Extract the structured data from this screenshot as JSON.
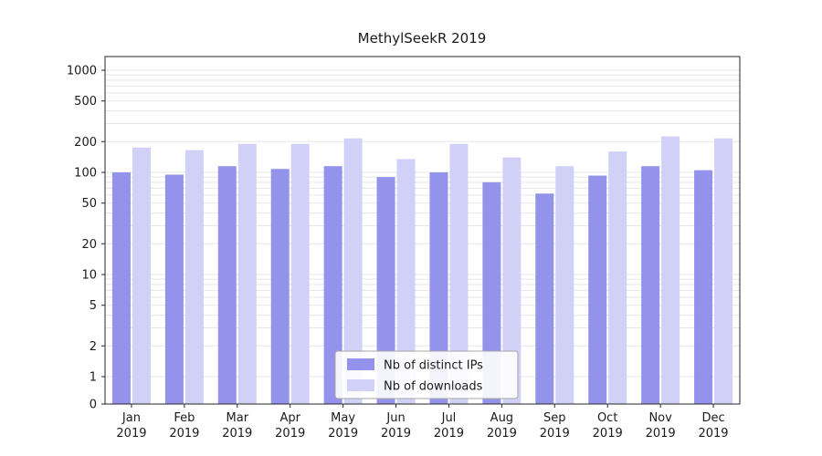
{
  "chart_data": {
    "type": "bar",
    "title": "MethylSeekR 2019",
    "yscale": "symlog",
    "grid": true,
    "legend_position": "lower center",
    "ylim": [
      0,
      1400
    ],
    "yticks": [
      0,
      1,
      2,
      5,
      10,
      20,
      50,
      100,
      200,
      500,
      1000
    ],
    "categories": [
      {
        "month": "Jan",
        "year": "2019"
      },
      {
        "month": "Feb",
        "year": "2019"
      },
      {
        "month": "Mar",
        "year": "2019"
      },
      {
        "month": "Apr",
        "year": "2019"
      },
      {
        "month": "May",
        "year": "2019"
      },
      {
        "month": "Jun",
        "year": "2019"
      },
      {
        "month": "Jul",
        "year": "2019"
      },
      {
        "month": "Aug",
        "year": "2019"
      },
      {
        "month": "Sep",
        "year": "2019"
      },
      {
        "month": "Oct",
        "year": "2019"
      },
      {
        "month": "Nov",
        "year": "2019"
      },
      {
        "month": "Dec",
        "year": "2019"
      }
    ],
    "series": [
      {
        "name": "Nb of distinct IPs",
        "color": "#9393eb",
        "values": [
          100,
          95,
          115,
          108,
          115,
          90,
          100,
          80,
          62,
          93,
          115,
          105
        ]
      },
      {
        "name": "Nb of downloads",
        "color": "#d1d1f7",
        "values": [
          175,
          165,
          190,
          190,
          215,
          135,
          190,
          140,
          115,
          160,
          225,
          215
        ]
      }
    ]
  },
  "colors": {
    "axis": "#262626",
    "gridline": "#e7e7e7",
    "legend_border": "#a6a6a6",
    "legend_bg": "#ffffff"
  }
}
